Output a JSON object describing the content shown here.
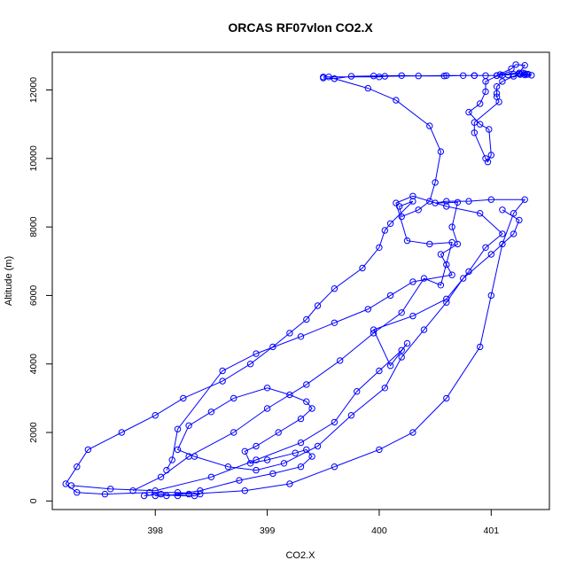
{
  "chart_data": {
    "type": "line",
    "title": "ORCAS RF07vlon CO2.X",
    "xlabel": "CO2.X",
    "ylabel": "Altitude (m)",
    "xlim": [
      397.08,
      401.52
    ],
    "ylim": [
      -250,
      13100
    ],
    "x_ticks": [
      398,
      399,
      400,
      401
    ],
    "y_ticks": [
      0,
      2000,
      4000,
      6000,
      8000,
      10000,
      12000
    ],
    "grid": false,
    "legend": "none",
    "line_color": "#0000ff",
    "marker": "open-circle",
    "series": [
      {
        "x": [
          401.26,
          401.3,
          401.33,
          401.36,
          401.3,
          401.25,
          401.2,
          401.15,
          401.1,
          401.05,
          400.95,
          400.85,
          400.75,
          400.58,
          400.35,
          400.2,
          399.95,
          399.75,
          399.6,
          399.55,
          399.5,
          400,
          400.05,
          400.6,
          400.85,
          401.05,
          401.18,
          401.22,
          401.3,
          401.25,
          401.08,
          400.95,
          400.95,
          400.9,
          400.8,
          400.9,
          400.98,
          401.0,
          400.97,
          400.95,
          400.85,
          400.85,
          401.07,
          401.05,
          401.05,
          401.05,
          401.1,
          401.2,
          401.28,
          401.32
        ],
        "y": [
          12450,
          12480,
          12460,
          12430,
          12440,
          12470,
          12460,
          12440,
          12430,
          12420,
          12420,
          12420,
          12420,
          12410,
          12410,
          12420,
          12410,
          12400,
          12330,
          12380,
          12380,
          12380,
          12400,
          12420,
          12420,
          12420,
          12620,
          12740,
          12720,
          12500,
          12450,
          12250,
          11950,
          11600,
          11350,
          11000,
          10850,
          10100,
          9900,
          10000,
          10750,
          11050,
          11650,
          11800,
          11900,
          12100,
          12250,
          12400,
          12500,
          12450
        ]
      },
      {
        "x": [
          399.5,
          399.6,
          399.9,
          400.15,
          400.45,
          400.55,
          400.5,
          400.45,
          400.35,
          400.2,
          400.18,
          400.3,
          400.1,
          400.05,
          400.0,
          399.85,
          399.6,
          399.45,
          399.35,
          399.2,
          399.05,
          398.85,
          398.6,
          398.25,
          398.0,
          397.7,
          397.4,
          397.3,
          397.2,
          397.3,
          397.55,
          397.95,
          398.2,
          398.4,
          398.35,
          398.2,
          398.05,
          397.9
        ],
        "y": [
          12350,
          12330,
          12050,
          11700,
          10950,
          10200,
          9300,
          8750,
          8500,
          8300,
          8600,
          8750,
          8100,
          7900,
          7400,
          6800,
          6200,
          5700,
          5300,
          4900,
          4500,
          4000,
          3500,
          3000,
          2500,
          2000,
          1500,
          1000,
          500,
          250,
          200,
          250,
          250,
          200,
          150,
          150,
          200,
          150
        ]
      },
      {
        "x": [
          398.0,
          398.3,
          398.8,
          399.2,
          399.6,
          400.0,
          400.3,
          400.6,
          400.9,
          401.0,
          401.1,
          401.2,
          401.3,
          401.0,
          400.8,
          400.6,
          400.5,
          400.7,
          400.65,
          400.7,
          400.55,
          400.6,
          400.65,
          400.3,
          400.1,
          399.9,
          399.6,
          399.3,
          398.9,
          398.6,
          398.2,
          398.15,
          398.1
        ],
        "y": [
          150,
          200,
          300,
          500,
          1000,
          1500,
          2000,
          3000,
          4500,
          6000,
          7500,
          8400,
          8800,
          8800,
          8750,
          8750,
          8700,
          8720,
          8000,
          7500,
          7200,
          6900,
          6600,
          6400,
          6000,
          5600,
          5200,
          4800,
          4300,
          3800,
          2100,
          1200,
          900
        ]
      },
      {
        "x": [
          398.1,
          398.4,
          398.75,
          399.05,
          399.3,
          399.4,
          399.35,
          399.25,
          399.0,
          398.85,
          398.8,
          398.9,
          399.1,
          399.3,
          399.4,
          399.35,
          399.2,
          399.0,
          398.7,
          398.5,
          398.3,
          398.2,
          398.35,
          398.65,
          398.9,
          399.15,
          399.45,
          399.75,
          400.05,
          400.2,
          400.4,
          400.6,
          400.75,
          401.0,
          401.2,
          401.25,
          401.1
        ],
        "y": [
          150,
          300,
          600,
          800,
          1000,
          1300,
          1500,
          1400,
          1200,
          1100,
          1450,
          1600,
          2000,
          2400,
          2700,
          2900,
          3100,
          3300,
          3000,
          2600,
          2200,
          1500,
          1300,
          1000,
          900,
          1100,
          1600,
          2500,
          3300,
          4200,
          5000,
          5800,
          6500,
          7200,
          7800,
          8200,
          8500
        ]
      },
      {
        "x": [
          397.25,
          397.6,
          398.0,
          398.5,
          398.9,
          399.3,
          399.6,
          399.8,
          400.0,
          400.2,
          400.25,
          400.1,
          399.95,
          400.3,
          400.6,
          400.8,
          400.95,
          401.1,
          400.9,
          400.6,
          400.3,
          400.15,
          400.25,
          400.45,
          400.65,
          400.55,
          400.4,
          400.2,
          399.95,
          399.65,
          399.35,
          399.0,
          398.7,
          398.3,
          398.05,
          397.8
        ],
        "y": [
          450,
          350,
          300,
          700,
          1200,
          1700,
          2300,
          3200,
          3800,
          4400,
          4600,
          3950,
          5000,
          5400,
          5900,
          6700,
          7400,
          7800,
          8400,
          8600,
          8900,
          8700,
          7600,
          7500,
          7550,
          6300,
          6500,
          5500,
          4900,
          4100,
          3400,
          2700,
          2000,
          1300,
          700,
          300
        ]
      }
    ]
  }
}
